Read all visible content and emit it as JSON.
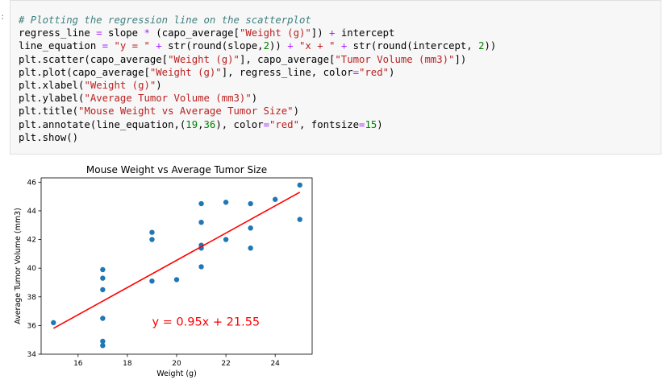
{
  "cell": {
    "prompt_marker": ":",
    "code_lines": [
      [
        {
          "t": "# Plotting the regression line on the scatterplot",
          "c": "cm"
        }
      ],
      [
        {
          "t": "regress_line "
        },
        {
          "t": "=",
          "c": "op"
        },
        {
          "t": " slope "
        },
        {
          "t": "*",
          "c": "op"
        },
        {
          "t": " (capo_average["
        },
        {
          "t": "\"Weight (g)\"",
          "c": "st"
        },
        {
          "t": "]) "
        },
        {
          "t": "+",
          "c": "op"
        },
        {
          "t": " intercept"
        }
      ],
      [
        {
          "t": "line_equation "
        },
        {
          "t": "=",
          "c": "op"
        },
        {
          "t": " "
        },
        {
          "t": "\"y = \"",
          "c": "st"
        },
        {
          "t": " "
        },
        {
          "t": "+",
          "c": "op"
        },
        {
          "t": " str(round(slope,"
        },
        {
          "t": "2",
          "c": "nm"
        },
        {
          "t": ")) "
        },
        {
          "t": "+",
          "c": "op"
        },
        {
          "t": " "
        },
        {
          "t": "\"x + \"",
          "c": "st"
        },
        {
          "t": " "
        },
        {
          "t": "+",
          "c": "op"
        },
        {
          "t": " str(round(intercept, "
        },
        {
          "t": "2",
          "c": "nm"
        },
        {
          "t": "))"
        }
      ],
      [
        {
          "t": "plt.scatter(capo_average["
        },
        {
          "t": "\"Weight (g)\"",
          "c": "st"
        },
        {
          "t": "], capo_average["
        },
        {
          "t": "\"Tumor Volume (mm3)\"",
          "c": "st"
        },
        {
          "t": "])"
        }
      ],
      [
        {
          "t": "plt.plot(capo_average["
        },
        {
          "t": "\"Weight (g)\"",
          "c": "st"
        },
        {
          "t": "], regress_line, color"
        },
        {
          "t": "=",
          "c": "op"
        },
        {
          "t": "\"red\"",
          "c": "st"
        },
        {
          "t": ")"
        }
      ],
      [
        {
          "t": "plt.xlabel("
        },
        {
          "t": "\"Weight (g)\"",
          "c": "st"
        },
        {
          "t": ")"
        }
      ],
      [
        {
          "t": "plt.ylabel("
        },
        {
          "t": "\"Average Tumor Volume (mm3)\"",
          "c": "st"
        },
        {
          "t": ")"
        }
      ],
      [
        {
          "t": "plt.title("
        },
        {
          "t": "\"Mouse Weight vs Average Tumor Size\"",
          "c": "st"
        },
        {
          "t": ")"
        }
      ],
      [
        {
          "t": "plt.annotate(line_equation,("
        },
        {
          "t": "19",
          "c": "nm"
        },
        {
          "t": ","
        },
        {
          "t": "36",
          "c": "nm"
        },
        {
          "t": "), color"
        },
        {
          "t": "=",
          "c": "op"
        },
        {
          "t": "\"red\"",
          "c": "st"
        },
        {
          "t": ", fontsize"
        },
        {
          "t": "=",
          "c": "op"
        },
        {
          "t": "15",
          "c": "nm"
        },
        {
          "t": ")"
        }
      ],
      [
        {
          "t": "plt.show()"
        }
      ]
    ]
  },
  "colors": {
    "points": "#1f77b4",
    "regression_line": "#ff0000",
    "annotation": "#ff0000"
  },
  "chart_data": {
    "type": "scatter",
    "title": "Mouse Weight vs Average Tumor Size",
    "xlabel": "Weight (g)",
    "ylabel": "Average Tumor Volume (mm3)",
    "xlim": [
      14.5,
      25.5
    ],
    "ylim": [
      34,
      46.3
    ],
    "xticks": [
      16,
      18,
      20,
      22,
      24
    ],
    "yticks": [
      34,
      36,
      38,
      40,
      42,
      44,
      46
    ],
    "grid": false,
    "points": [
      {
        "x": 15,
        "y": 36.2
      },
      {
        "x": 17,
        "y": 34.6
      },
      {
        "x": 17,
        "y": 34.9
      },
      {
        "x": 17,
        "y": 36.5
      },
      {
        "x": 17,
        "y": 38.5
      },
      {
        "x": 17,
        "y": 39.3
      },
      {
        "x": 17,
        "y": 39.9
      },
      {
        "x": 19,
        "y": 39.1
      },
      {
        "x": 19,
        "y": 42.0
      },
      {
        "x": 19,
        "y": 42.5
      },
      {
        "x": 20,
        "y": 39.2
      },
      {
        "x": 21,
        "y": 40.1
      },
      {
        "x": 21,
        "y": 41.4
      },
      {
        "x": 21,
        "y": 41.6
      },
      {
        "x": 21,
        "y": 43.2
      },
      {
        "x": 21,
        "y": 44.5
      },
      {
        "x": 22,
        "y": 42.0
      },
      {
        "x": 22,
        "y": 44.6
      },
      {
        "x": 23,
        "y": 41.4
      },
      {
        "x": 23,
        "y": 42.8
      },
      {
        "x": 23,
        "y": 44.5
      },
      {
        "x": 24,
        "y": 44.8
      },
      {
        "x": 25,
        "y": 43.4
      },
      {
        "x": 25,
        "y": 45.8
      }
    ],
    "regression": {
      "slope": 0.95,
      "intercept": 21.55,
      "x_range": [
        15,
        25
      ]
    },
    "annotation": {
      "text": "y = 0.95x + 21.55",
      "x": 19,
      "y": 36
    }
  }
}
